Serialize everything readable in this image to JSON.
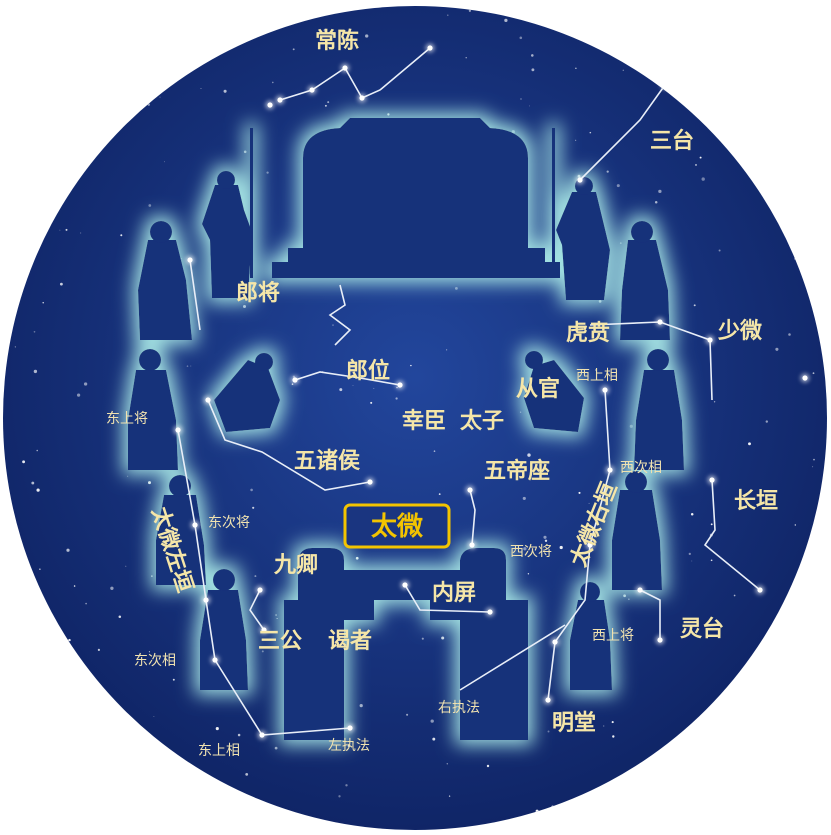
{
  "colors": {
    "sky_inner": "#1e3f94",
    "sky_outer": "#0f2466",
    "silhouette": "#15307a",
    "glow": "#a8e8e6",
    "label": "#f5e6a8",
    "center_box": "#f3c400"
  },
  "center_title": "太微",
  "labels": {
    "changchen": "常陈",
    "santai": "三台",
    "langjiang": "郎将",
    "langwei": "郎位",
    "huben": "虎贲",
    "shaowei": "少微",
    "congguan": "从官",
    "xishangxiang": "西上相",
    "xinchen": "幸臣",
    "taizi": "太子",
    "dongshangjiang": "东上将",
    "wuzhuhou": "五诸侯",
    "wudizuo": "五帝座",
    "xicixiang": "西次相",
    "changyuan": "长垣",
    "taiwei_left": "太微左垣",
    "dongcijiang": "东次将",
    "xicijiang": "西次将",
    "taiwei_right": "太微右垣",
    "jiuqing": "九卿",
    "neiping": "内屏",
    "sangong": "三公",
    "yezhe": "谒者",
    "xishangjiang": "西上将",
    "lingtai": "灵台",
    "dongcixiang": "东次相",
    "youzhifa": "右执法",
    "mingtang": "明堂",
    "dongshangxiang": "东上相",
    "zuozhifa": "左执法"
  }
}
